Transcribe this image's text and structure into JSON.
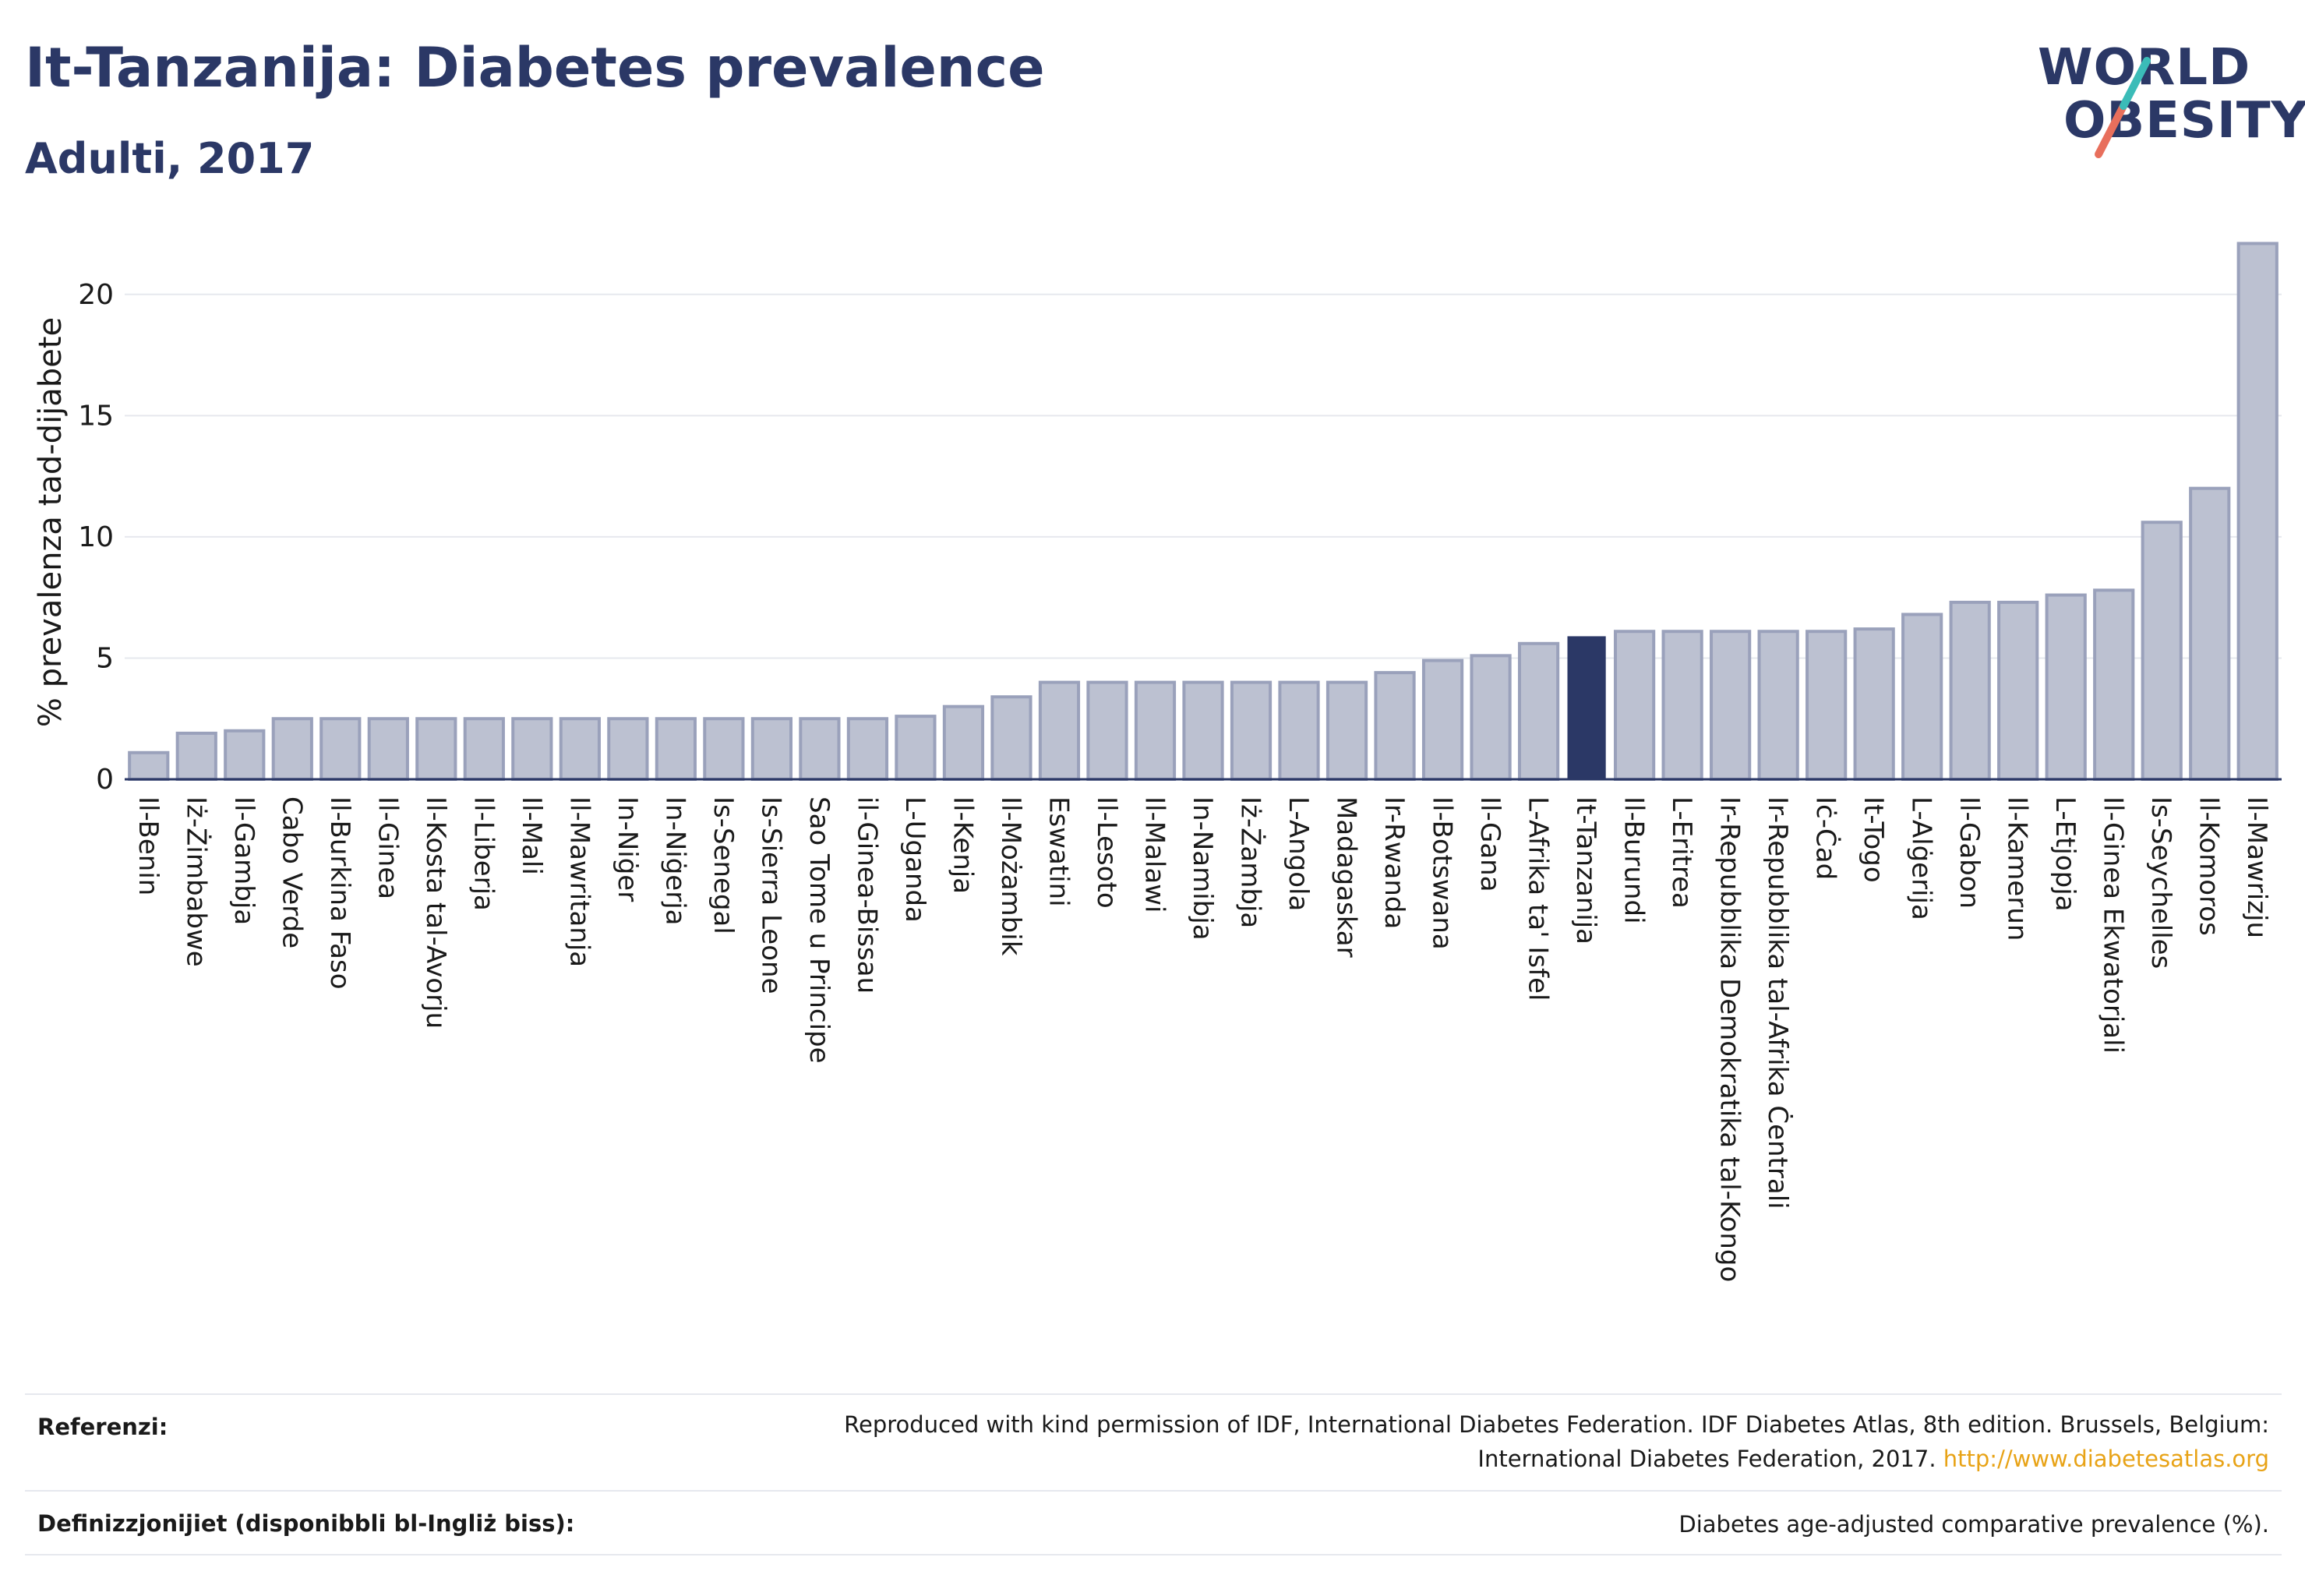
{
  "title": "It-Tanzanija: Diabetes prevalence",
  "subtitle": "Adulti, 2017",
  "logo": {
    "line1": "WORLD",
    "line2": "OBESITY"
  },
  "colors": {
    "bar": "#bcc1d1",
    "bar_stroke": "#9aa1bb",
    "highlight": "#2b3866",
    "grid": "#e6e8ee",
    "axis": "#2b3866"
  },
  "chart_data": {
    "type": "bar",
    "ylabel": "% prevalenza tad-dijabete",
    "ylim": [
      0,
      22.5
    ],
    "yticks": [
      0,
      5,
      10,
      15,
      20
    ],
    "grid": true,
    "highlight": "It-Tanzanija",
    "categories": [
      "Il-Benin",
      "Iż-Żimbabwe",
      "Il-Gambja",
      "Cabo Verde",
      "Il-Burkina Faso",
      "Il-Ginea",
      "Il-Kosta tal-Avorju",
      "Il-Liberja",
      "Il-Mali",
      "Il-Mawritanja",
      "In-Niġer",
      "In-Niġerja",
      "Is-Senegal",
      "Is-Sierra Leone",
      "Sao Tome u Principe",
      "il-Ginea-Bissau",
      "L-Uganda",
      "Il-Kenja",
      "Il-Możambik",
      "Eswatini",
      "Il-Lesoto",
      "Il-Malawi",
      "In-Namibja",
      "Iż-Żambja",
      "L-Angola",
      "Madagaskar",
      "Ir-Rwanda",
      "Il-Botswana",
      "Il-Gana",
      "L-Afrika ta' Isfel",
      "It-Tanzanija",
      "Il-Burundi",
      "L-Eritrea",
      "Ir-Repubblika Demokratika tal-Kongo",
      "Ir-Repubblika tal-Afrika Ċentrali",
      "Iċ-Ċad",
      "It-Togo",
      "L-Alġerija",
      "Il-Gabon",
      "Il-Kamerun",
      "L-Etjopja",
      "Il-Ginea Ekwatorjali",
      "Is-Seychelles",
      "Il-Komoros",
      "Il-Mawrizju"
    ],
    "values": [
      1.1,
      1.9,
      2.0,
      2.5,
      2.5,
      2.5,
      2.5,
      2.5,
      2.5,
      2.5,
      2.5,
      2.5,
      2.5,
      2.5,
      2.5,
      2.5,
      2.6,
      3.0,
      3.4,
      4.0,
      4.0,
      4.0,
      4.0,
      4.0,
      4.0,
      4.0,
      4.4,
      4.9,
      5.1,
      5.6,
      5.9,
      6.1,
      6.1,
      6.1,
      6.1,
      6.1,
      6.2,
      6.8,
      7.3,
      7.3,
      7.6,
      7.8,
      10.6,
      12.0,
      22.1
    ]
  },
  "footer": {
    "ref_label": "Referenzi:",
    "ref_text1": "Reproduced with kind permission of IDF, International Diabetes Federation. IDF Diabetes Atlas, 8th edition. Brussels, Belgium:",
    "ref_text2": "International Diabetes Federation, 2017.",
    "ref_link": "http://www.diabetesatlas.org",
    "def_label": "Definizzjonijiet (disponibbli bl-Ingliż biss):",
    "def_text": "Diabetes age-adjusted comparative prevalence (%)."
  }
}
